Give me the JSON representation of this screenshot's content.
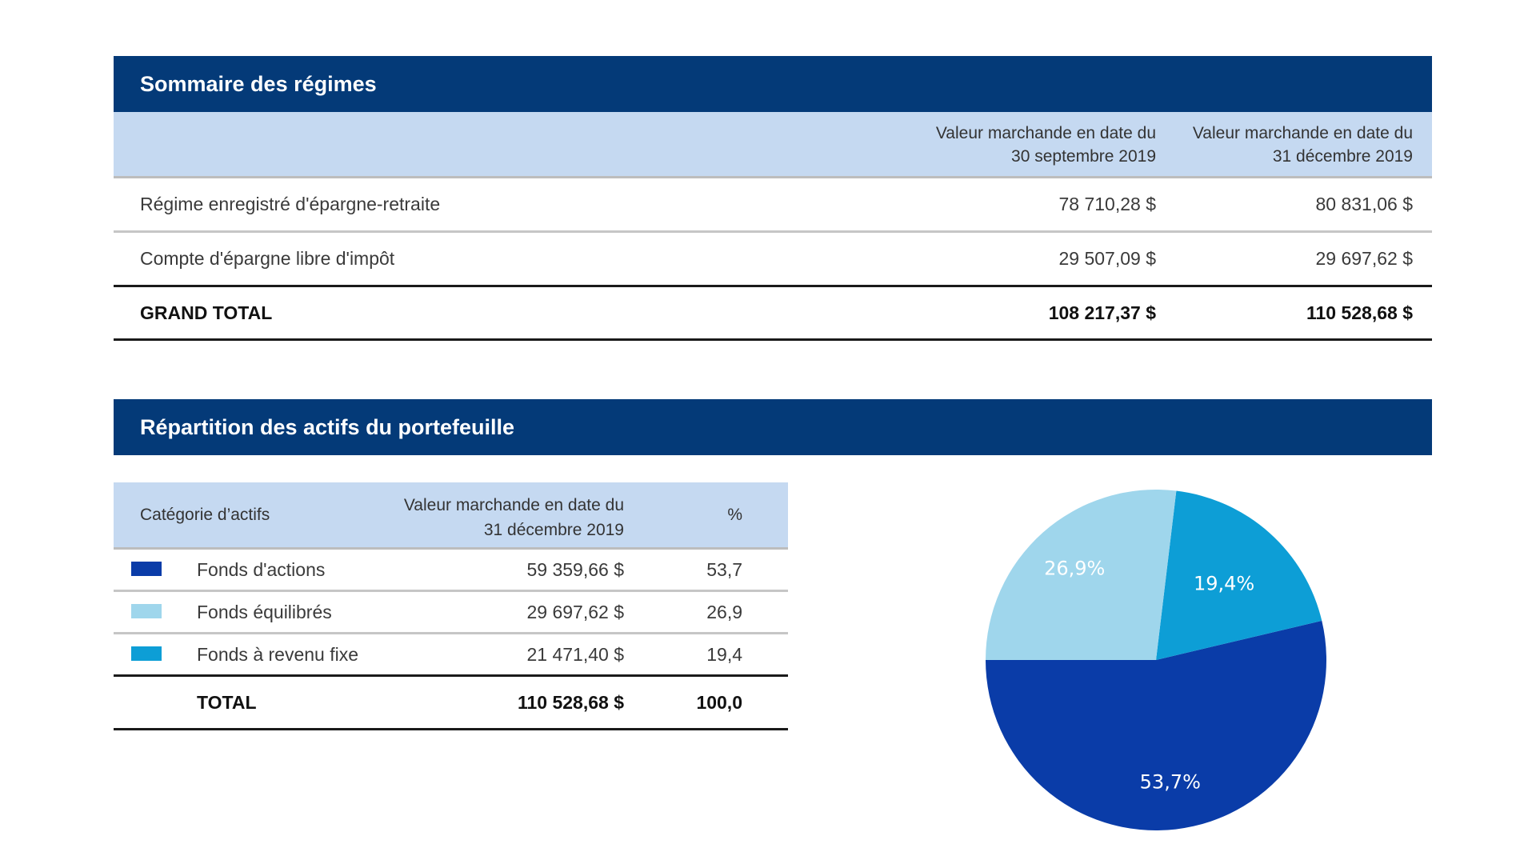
{
  "summary": {
    "title": "Sommaire des régimes",
    "col1_line1": "Valeur marchande en date du",
    "col1_line2": "30 septembre 2019",
    "col2_line1": "Valeur marchande en date du",
    "col2_line2": "31 décembre 2019",
    "rows": [
      {
        "label": "Régime enregistré d'épargne-retraite",
        "v1": "78 710,28 $",
        "v2": "80 831,06 $"
      },
      {
        "label": "Compte d'épargne libre d'impôt",
        "v1": "29 507,09 $",
        "v2": "29 697,62 $"
      }
    ],
    "total": {
      "label": "GRAND TOTAL",
      "v1": "108 217,37 $",
      "v2": "110 528,68 $"
    }
  },
  "allocation": {
    "title": "Répartition des actifs du portefeuille",
    "col_category": "Catégorie d’actifs",
    "col_value_line1": "Valeur marchande en date du",
    "col_value_line2": "31 décembre 2019",
    "col_pct": "%",
    "rows": [
      {
        "name": "Fonds d'actions",
        "value": "59 359,66 $",
        "pct": "53,7",
        "color": "#0a3ca8"
      },
      {
        "name": "Fonds équilibrés",
        "value": "29 697,62 $",
        "pct": "26,9",
        "color": "#9fd6ec"
      },
      {
        "name": "Fonds à revenu fixe",
        "value": "21 471,40 $",
        "pct": "19,4",
        "color": "#0d9ed6"
      }
    ],
    "total": {
      "label": "TOTAL",
      "value": "110 528,68 $",
      "pct": "100,0"
    }
  },
  "chart_data": {
    "type": "pie",
    "categories": [
      "Fonds d'actions",
      "Fonds équilibrés",
      "Fonds à revenu fixe"
    ],
    "values": [
      53.7,
      26.9,
      19.4
    ],
    "labels": [
      "53,7%",
      "26,9%",
      "19,4%"
    ],
    "colors": [
      "#0a3ca8",
      "#9fd6ec",
      "#0d9ed6"
    ]
  }
}
